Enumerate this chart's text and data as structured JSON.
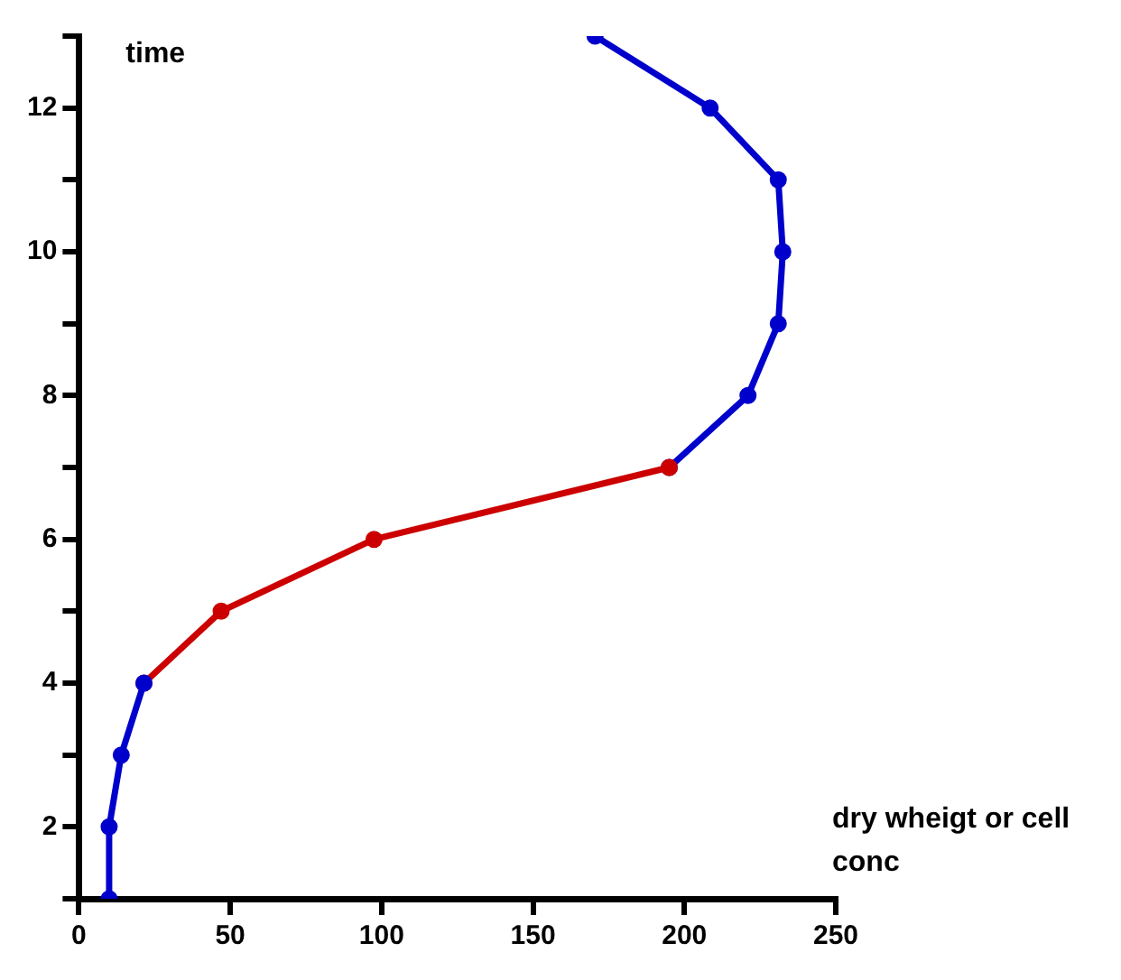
{
  "chart_data": {
    "type": "line",
    "xlabel": "dry wheigt or cell conc",
    "ylabel": "time",
    "xlim": [
      0,
      250
    ],
    "xticks": [
      0,
      50,
      100,
      150,
      200,
      250
    ],
    "ylim": [
      1,
      13
    ],
    "yticks": [
      {
        "value": 1,
        "label": null
      },
      2,
      {
        "value": 3,
        "label": null
      },
      4,
      {
        "value": 5,
        "label": null
      },
      6,
      {
        "value": 7,
        "label": null
      },
      8,
      {
        "value": 9,
        "label": null
      },
      10,
      {
        "value": 11,
        "label": null
      },
      12,
      {
        "value": 13,
        "label": null
      }
    ],
    "grid": false,
    "legend": false,
    "marker": "circle",
    "line_style": "solid",
    "series": [
      {
        "color": "#0000cc",
        "x": [
          10,
          10,
          14,
          21.5
        ],
        "values": [
          1,
          2,
          3,
          4
        ]
      },
      {
        "color": "#cc0000",
        "x": [
          21.5,
          47,
          97.5,
          195
        ],
        "values": [
          4,
          5,
          6,
          7
        ]
      },
      {
        "color": "#0000cc",
        "x": [
          195,
          221,
          231,
          232.5,
          231,
          208.5,
          170.5
        ],
        "values": [
          7,
          8,
          9,
          10,
          11,
          12,
          13
        ]
      }
    ]
  }
}
